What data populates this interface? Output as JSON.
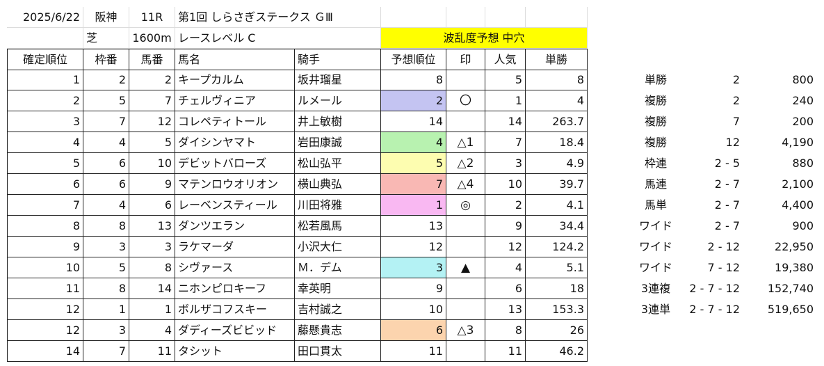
{
  "header": {
    "date": "2025/6/22",
    "venue": "阪神",
    "race_no": "11R",
    "race_name": "第1回 しらさぎステークス ＧⅢ",
    "surface": "芝",
    "distance": "1600m",
    "race_level": "レースレベル C",
    "forecast_title": "波乱度予想 中穴"
  },
  "columns": [
    "確定順位",
    "枠番",
    "馬番",
    "馬名",
    "騎手",
    "予想順位",
    "印",
    "人気",
    "単勝"
  ],
  "colors": {
    "forecast_2": "#c4c4f2",
    "forecast_4": "#b8f2b0",
    "forecast_5": "#fdfdb0",
    "forecast_7": "#f9b8b4",
    "forecast_1": "#f9b8f2",
    "forecast_3": "#b4f2f4",
    "forecast_6": "#fcd4ae",
    "title_yellow": "#ffff00"
  },
  "rows": [
    {
      "rank": "1",
      "waku": "2",
      "umaban": "2",
      "name": "キープカルム",
      "jockey": "坂井瑠星",
      "pred": "8",
      "mark": "",
      "pop": "5",
      "odds": "8",
      "color": ""
    },
    {
      "rank": "2",
      "waku": "5",
      "umaban": "7",
      "name": "チェルヴィニア",
      "jockey": "ルメール",
      "pred": "2",
      "mark": "〇",
      "pop": "1",
      "odds": "4",
      "color": "#c4c4f2"
    },
    {
      "rank": "3",
      "waku": "7",
      "umaban": "12",
      "name": "コレペティトール",
      "jockey": "井上敏樹",
      "pred": "14",
      "mark": "",
      "pop": "14",
      "odds": "263.7",
      "color": ""
    },
    {
      "rank": "4",
      "waku": "4",
      "umaban": "5",
      "name": "ダイシンヤマト",
      "jockey": "岩田康誠",
      "pred": "4",
      "mark": "△1",
      "pop": "7",
      "odds": "18.4",
      "color": "#b8f2b0"
    },
    {
      "rank": "5",
      "waku": "6",
      "umaban": "10",
      "name": "デビットバローズ",
      "jockey": "松山弘平",
      "pred": "5",
      "mark": "△2",
      "pop": "3",
      "odds": "4.9",
      "color": "#fdfdb0"
    },
    {
      "rank": "6",
      "waku": "6",
      "umaban": "9",
      "name": "マテンロウオリオン",
      "jockey": "横山典弘",
      "pred": "7",
      "mark": "△4",
      "pop": "10",
      "odds": "39.7",
      "color": "#f9b8b4"
    },
    {
      "rank": "7",
      "waku": "4",
      "umaban": "6",
      "name": "レーベンスティール",
      "jockey": "川田将雅",
      "pred": "1",
      "mark": "◎",
      "pop": "2",
      "odds": "4.1",
      "color": "#f9b8f2"
    },
    {
      "rank": "8",
      "waku": "8",
      "umaban": "13",
      "name": "ダンツエラン",
      "jockey": "松若風馬",
      "pred": "13",
      "mark": "",
      "pop": "9",
      "odds": "34.4",
      "color": ""
    },
    {
      "rank": "9",
      "waku": "3",
      "umaban": "3",
      "name": "ラケマーダ",
      "jockey": "小沢大仁",
      "pred": "12",
      "mark": "",
      "pop": "12",
      "odds": "124.2",
      "color": ""
    },
    {
      "rank": "10",
      "waku": "5",
      "umaban": "8",
      "name": "シヴァース",
      "jockey": "Ｍ．デム",
      "pred": "3",
      "mark": "▲",
      "pop": "4",
      "odds": "5.1",
      "color": "#b4f2f4"
    },
    {
      "rank": "11",
      "waku": "8",
      "umaban": "14",
      "name": "ニホンピロキーフ",
      "jockey": "幸英明",
      "pred": "9",
      "mark": "",
      "pop": "6",
      "odds": "18",
      "color": ""
    },
    {
      "rank": "12",
      "waku": "1",
      "umaban": "1",
      "name": "ボルザコフスキー",
      "jockey": "吉村誠之",
      "pred": "10",
      "mark": "",
      "pop": "13",
      "odds": "153.3",
      "color": ""
    },
    {
      "rank": "12",
      "waku": "3",
      "umaban": "4",
      "name": "ダディーズビビッド",
      "jockey": "藤懸貴志",
      "pred": "6",
      "mark": "△3",
      "pop": "8",
      "odds": "26",
      "color": "#fcd4ae"
    },
    {
      "rank": "14",
      "waku": "7",
      "umaban": "11",
      "name": "タシット",
      "jockey": "田口貫太",
      "pred": "11",
      "mark": "",
      "pop": "11",
      "odds": "46.2",
      "color": ""
    }
  ],
  "payouts": [
    {
      "type": "単勝",
      "combo": "2",
      "amount": "800"
    },
    {
      "type": "複勝",
      "combo": "2",
      "amount": "240"
    },
    {
      "type": "複勝",
      "combo": "7",
      "amount": "200"
    },
    {
      "type": "複勝",
      "combo": "12",
      "amount": "4,190"
    },
    {
      "type": "枠連",
      "combo": "2 - 5",
      "amount": "880"
    },
    {
      "type": "馬連",
      "combo": "2 - 7",
      "amount": "2,100"
    },
    {
      "type": "馬単",
      "combo": "2 - 7",
      "amount": "4,400"
    },
    {
      "type": "ワイド",
      "combo": "2 - 7",
      "amount": "900"
    },
    {
      "type": "ワイド",
      "combo": "2 - 12",
      "amount": "22,950"
    },
    {
      "type": "ワイド",
      "combo": "7 - 12",
      "amount": "19,380"
    },
    {
      "type": "3連複",
      "combo": "2 - 7 - 12",
      "amount": "152,740"
    },
    {
      "type": "3連単",
      "combo": "2 - 7 - 12",
      "amount": "519,650"
    }
  ]
}
